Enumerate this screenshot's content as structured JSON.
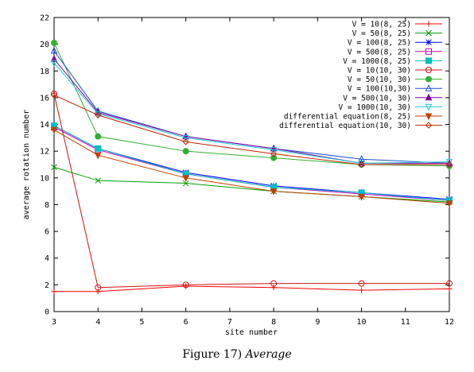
{
  "caption": {
    "label": "Figure 17)",
    "title": "Average"
  },
  "chart_data": {
    "type": "line",
    "xlabel": "site number",
    "ylabel": "average rotation number",
    "xlim": [
      3,
      12
    ],
    "ylim": [
      0,
      22
    ],
    "xticks": [
      3,
      4,
      5,
      6,
      7,
      8,
      9,
      10,
      11,
      12
    ],
    "yticks": [
      0,
      2,
      4,
      6,
      8,
      10,
      12,
      14,
      16,
      18,
      20,
      22
    ],
    "x": [
      3,
      4,
      6,
      8,
      10,
      12
    ],
    "grid": false,
    "legend_position": "top-right",
    "series": [
      {
        "name": "V = 10(8, 25)",
        "color": "#ff0000",
        "marker": "plus",
        "values": [
          1.5,
          1.5,
          1.9,
          1.8,
          1.6,
          1.7
        ]
      },
      {
        "name": "V = 50(8, 25)",
        "color": "#00a000",
        "marker": "x",
        "values": [
          10.8,
          9.8,
          9.6,
          9.0,
          8.6,
          8.2
        ]
      },
      {
        "name": "V = 100(8, 25)",
        "color": "#0000ff",
        "marker": "star",
        "values": [
          13.9,
          12.2,
          10.4,
          9.4,
          8.9,
          8.4
        ]
      },
      {
        "name": "V = 500(8, 25)",
        "color": "#c000c0",
        "marker": "square",
        "values": [
          13.8,
          12.1,
          10.3,
          9.3,
          8.8,
          8.3
        ]
      },
      {
        "name": "V = 1000(8, 25)",
        "color": "#00c0c0",
        "marker": "filled-square",
        "values": [
          13.9,
          12.2,
          10.3,
          9.3,
          8.9,
          8.3
        ]
      },
      {
        "name": "V = 10(10, 30)",
        "color": "#d01010",
        "marker": "circle",
        "values": [
          16.3,
          1.8,
          2.0,
          2.1,
          2.1,
          2.1
        ]
      },
      {
        "name": "V = 50(10, 30)",
        "color": "#30b030",
        "marker": "filled-circle",
        "values": [
          20.1,
          13.1,
          12.0,
          11.5,
          11.0,
          10.9
        ]
      },
      {
        "name": "V = 100(10,30)",
        "color": "#1e50d0",
        "marker": "triangle",
        "values": [
          19.5,
          15.0,
          13.1,
          12.2,
          11.4,
          11.1
        ]
      },
      {
        "name": "V = 500(10, 30)",
        "color": "#8000a0",
        "marker": "filled-triangle",
        "values": [
          18.9,
          14.9,
          13.1,
          12.2,
          11.1,
          11.1
        ]
      },
      {
        "name": "V = 1000(10, 30)",
        "color": "#20c8d8",
        "marker": "triangle-down",
        "values": [
          18.6,
          14.8,
          13.0,
          12.1,
          11.1,
          11.2
        ]
      },
      {
        "name": "differential equation(8, 25)",
        "color": "#c04000",
        "marker": "filled-triangle-down",
        "values": [
          13.6,
          11.7,
          10.0,
          9.0,
          8.6,
          8.1
        ]
      },
      {
        "name": "differential equation(10, 30)",
        "color": "#c02000",
        "marker": "diamond",
        "values": [
          16.2,
          14.7,
          12.7,
          11.8,
          11.0,
          11.0
        ]
      }
    ]
  }
}
